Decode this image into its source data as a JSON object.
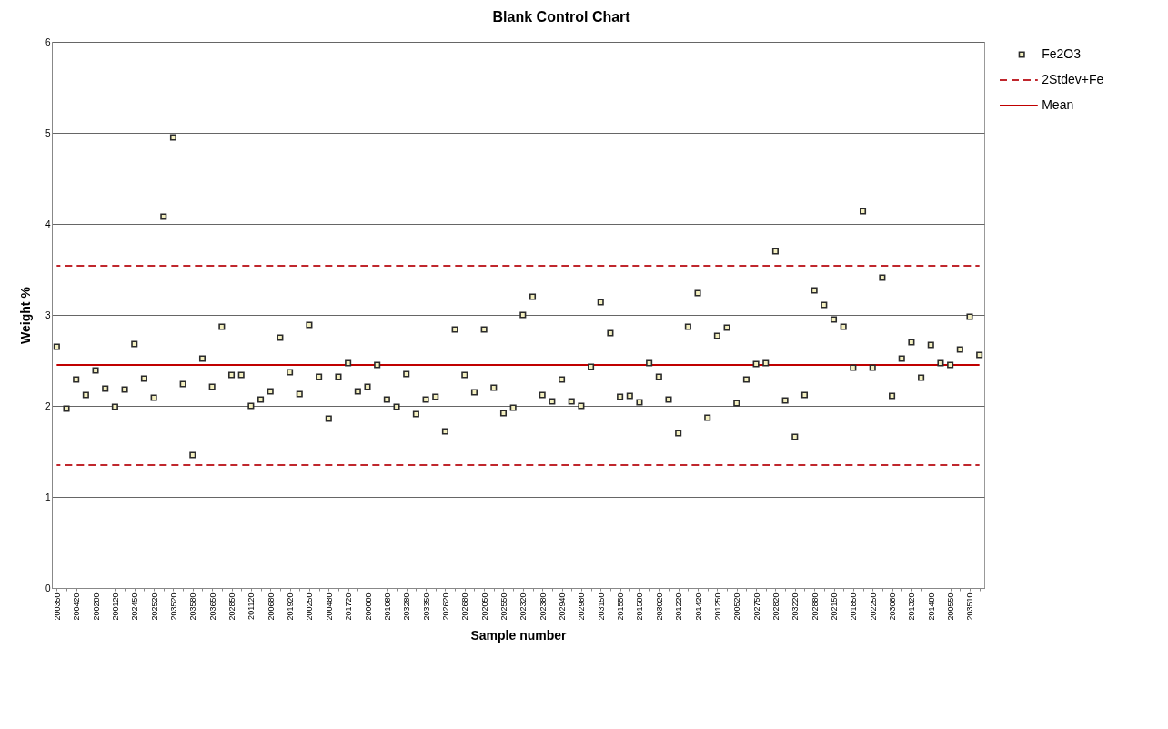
{
  "chart_data": {
    "type": "scatter",
    "title": "Blank Control Chart",
    "xlabel": "Sample number",
    "ylabel": "Weight %",
    "categories": [
      "200350",
      null,
      "200420",
      null,
      "200280",
      null,
      "200120",
      null,
      "202450",
      null,
      "202520",
      null,
      "203520",
      null,
      "203580",
      null,
      "203650",
      null,
      "202850",
      null,
      "201120",
      null,
      "200680",
      null,
      "201920",
      null,
      "200250",
      null,
      "200480",
      null,
      "201720",
      null,
      "200080",
      null,
      "201080",
      null,
      "203280",
      null,
      "203350",
      null,
      "202620",
      null,
      "202680",
      null,
      "202050",
      null,
      "202550",
      null,
      "202320",
      null,
      "202380",
      null,
      "202940",
      null,
      "202980",
      null,
      "203150",
      null,
      "201550",
      null,
      "201580",
      null,
      "203020",
      null,
      "201220",
      null,
      "201420",
      null,
      "201250",
      null,
      "200520",
      null,
      "202750",
      null,
      "202820",
      null,
      "203220",
      null,
      "202880",
      null,
      "202150",
      null,
      "201850",
      null,
      "202250",
      null,
      "203080",
      null,
      "201320",
      null,
      "201480",
      null,
      "200550",
      null,
      "203510",
      null
    ],
    "ylim": [
      0,
      6
    ],
    "yticks": [
      0,
      1,
      2,
      3,
      4,
      5,
      6
    ],
    "grid": "y",
    "legend": "right",
    "series": [
      {
        "name": "Fe2O3",
        "marker": "square",
        "color": "#2b2b2b",
        "values": [
          2.65,
          1.97,
          2.29,
          2.12,
          2.39,
          2.19,
          1.99,
          2.18,
          2.68,
          2.3,
          2.09,
          4.08,
          4.95,
          2.24,
          1.46,
          2.52,
          2.21,
          2.87,
          2.34,
          2.34,
          2.0,
          2.07,
          2.16,
          2.75,
          2.37,
          2.13,
          2.89,
          2.32,
          1.86,
          2.32,
          2.47,
          2.16,
          2.21,
          2.45,
          2.07,
          1.99,
          2.35,
          1.91,
          2.07,
          2.1,
          1.72,
          2.84,
          2.34,
          2.15,
          2.84,
          2.2,
          1.92,
          1.98,
          3.0,
          3.2,
          2.12,
          2.05,
          2.29,
          2.05,
          2.0,
          2.43,
          3.14,
          2.8,
          2.1,
          2.11,
          2.04,
          2.47,
          2.32,
          2.07,
          1.7,
          2.87,
          3.24,
          1.87,
          2.77,
          2.86,
          2.03,
          2.29,
          2.46,
          2.47,
          3.7,
          2.06,
          1.66,
          2.12,
          3.27,
          3.11,
          2.95,
          2.87,
          2.42,
          4.14,
          2.42,
          3.41,
          2.11,
          2.52,
          2.7,
          2.31,
          2.67,
          2.47,
          2.45,
          2.62,
          2.98,
          2.56
        ]
      },
      {
        "name": "2Stdev+Fe",
        "type": "line",
        "line_style": "dashed",
        "color": "#c0272d",
        "values": [
          3.54,
          3.54,
          3.54,
          3.54,
          3.54,
          3.54,
          3.54,
          3.54,
          3.54,
          3.54,
          3.54,
          3.54,
          3.54,
          3.54,
          3.54,
          3.54,
          3.54,
          3.54,
          3.54,
          3.54,
          3.54,
          3.54,
          3.54,
          3.54,
          3.54,
          3.54,
          3.54,
          3.54,
          3.54,
          3.54,
          3.54,
          3.54,
          3.54,
          3.54,
          3.54,
          3.54,
          3.54,
          3.54,
          3.54,
          3.54,
          3.54,
          3.54,
          3.54,
          3.54,
          3.54,
          3.54,
          3.54,
          3.54,
          3.54,
          3.54,
          3.54,
          3.54,
          3.54,
          3.54,
          3.54,
          3.54,
          3.54,
          3.54,
          3.54,
          3.54,
          3.54,
          3.54,
          3.54,
          3.54,
          3.54,
          3.54,
          3.54,
          3.54,
          3.54,
          3.54,
          3.54,
          3.54,
          3.54,
          3.54,
          3.54,
          3.54,
          3.54,
          3.54,
          3.54,
          3.54,
          3.54,
          3.54,
          3.54,
          3.54,
          3.54,
          3.54,
          3.54,
          3.54,
          3.54,
          3.54,
          3.54,
          3.54,
          3.54,
          3.54,
          3.54,
          3.54
        ]
      },
      {
        "type": "line",
        "line_style": "dashed",
        "color": "#c0272d",
        "values": [
          1.35,
          1.35,
          1.35,
          1.35,
          1.35,
          1.35,
          1.35,
          1.35,
          1.35,
          1.35,
          1.35,
          1.35,
          1.35,
          1.35,
          1.35,
          1.35,
          1.35,
          1.35,
          1.35,
          1.35,
          1.35,
          1.35,
          1.35,
          1.35,
          1.35,
          1.35,
          1.35,
          1.35,
          1.35,
          1.35,
          1.35,
          1.35,
          1.35,
          1.35,
          1.35,
          1.35,
          1.35,
          1.35,
          1.35,
          1.35,
          1.35,
          1.35,
          1.35,
          1.35,
          1.35,
          1.35,
          1.35,
          1.35,
          1.35,
          1.35,
          1.35,
          1.35,
          1.35,
          1.35,
          1.35,
          1.35,
          1.35,
          1.35,
          1.35,
          1.35,
          1.35,
          1.35,
          1.35,
          1.35,
          1.35,
          1.35,
          1.35,
          1.35,
          1.35,
          1.35,
          1.35,
          1.35,
          1.35,
          1.35,
          1.35,
          1.35,
          1.35,
          1.35,
          1.35,
          1.35,
          1.35,
          1.35,
          1.35,
          1.35,
          1.35,
          1.35,
          1.35,
          1.35,
          1.35,
          1.35,
          1.35,
          1.35,
          1.35,
          1.35,
          1.35,
          1.35
        ]
      },
      {
        "name": "Mean",
        "type": "line",
        "line_style": "solid",
        "color": "#c00000",
        "values": [
          2.45,
          2.45,
          2.45,
          2.45,
          2.45,
          2.45,
          2.45,
          2.45,
          2.45,
          2.45,
          2.45,
          2.45,
          2.45,
          2.45,
          2.45,
          2.45,
          2.45,
          2.45,
          2.45,
          2.45,
          2.45,
          2.45,
          2.45,
          2.45,
          2.45,
          2.45,
          2.45,
          2.45,
          2.45,
          2.45,
          2.45,
          2.45,
          2.45,
          2.45,
          2.45,
          2.45,
          2.45,
          2.45,
          2.45,
          2.45,
          2.45,
          2.45,
          2.45,
          2.45,
          2.45,
          2.45,
          2.45,
          2.45,
          2.45,
          2.45,
          2.45,
          2.45,
          2.45,
          2.45,
          2.45,
          2.45,
          2.45,
          2.45,
          2.45,
          2.45,
          2.45,
          2.45,
          2.45,
          2.45,
          2.45,
          2.45,
          2.45,
          2.45,
          2.45,
          2.45,
          2.45,
          2.45,
          2.45,
          2.45,
          2.45,
          2.45,
          2.45,
          2.45,
          2.45,
          2.45,
          2.45,
          2.45,
          2.45,
          2.45,
          2.45,
          2.45,
          2.45,
          2.45,
          2.45,
          2.45,
          2.45,
          2.45,
          2.45,
          2.45,
          2.45,
          2.45
        ]
      }
    ]
  }
}
